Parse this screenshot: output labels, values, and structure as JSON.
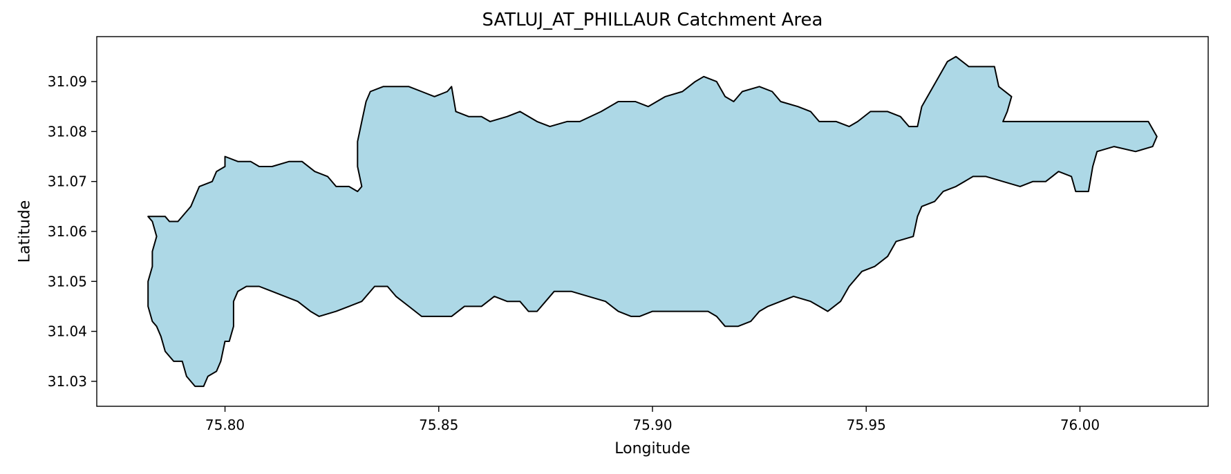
{
  "chart_data": {
    "type": "map",
    "title": "SATLUJ_AT_PHILLAUR Catchment Area",
    "xlabel": "Longitude",
    "ylabel": "Latitude",
    "xlim": [
      75.77,
      76.03
    ],
    "ylim": [
      31.025,
      31.099
    ],
    "xticks": [
      75.8,
      75.85,
      75.9,
      75.95,
      76.0
    ],
    "xtick_labels": [
      "75.80",
      "75.85",
      "75.90",
      "75.95",
      "76.00"
    ],
    "yticks": [
      31.03,
      31.04,
      31.05,
      31.06,
      31.07,
      31.08,
      31.09
    ],
    "ytick_labels": [
      "31.03",
      "31.04",
      "31.05",
      "31.06",
      "31.07",
      "31.08",
      "31.09"
    ],
    "grid": false,
    "fill_color": "#add8e6",
    "edge_color": "#000000",
    "boundary": [
      [
        75.782,
        31.063
      ],
      [
        75.786,
        31.063
      ],
      [
        75.787,
        31.062
      ],
      [
        75.789,
        31.062
      ],
      [
        75.791,
        31.064
      ],
      [
        75.792,
        31.065
      ],
      [
        75.793,
        31.067
      ],
      [
        75.794,
        31.069
      ],
      [
        75.797,
        31.07
      ],
      [
        75.798,
        31.072
      ],
      [
        75.8,
        31.073
      ],
      [
        75.8,
        31.075
      ],
      [
        75.803,
        31.074
      ],
      [
        75.806,
        31.074
      ],
      [
        75.808,
        31.073
      ],
      [
        75.811,
        31.073
      ],
      [
        75.815,
        31.074
      ],
      [
        75.818,
        31.074
      ],
      [
        75.821,
        31.072
      ],
      [
        75.824,
        31.071
      ],
      [
        75.826,
        31.069
      ],
      [
        75.829,
        31.069
      ],
      [
        75.831,
        31.068
      ],
      [
        75.832,
        31.069
      ],
      [
        75.831,
        31.073
      ],
      [
        75.831,
        31.078
      ],
      [
        75.832,
        31.082
      ],
      [
        75.833,
        31.086
      ],
      [
        75.834,
        31.088
      ],
      [
        75.837,
        31.089
      ],
      [
        75.84,
        31.089
      ],
      [
        75.843,
        31.089
      ],
      [
        75.846,
        31.088
      ],
      [
        75.849,
        31.087
      ],
      [
        75.852,
        31.088
      ],
      [
        75.853,
        31.089
      ],
      [
        75.854,
        31.084
      ],
      [
        75.857,
        31.083
      ],
      [
        75.86,
        31.083
      ],
      [
        75.862,
        31.082
      ],
      [
        75.866,
        31.083
      ],
      [
        75.869,
        31.084
      ],
      [
        75.873,
        31.082
      ],
      [
        75.876,
        31.081
      ],
      [
        75.88,
        31.082
      ],
      [
        75.883,
        31.082
      ],
      [
        75.888,
        31.084
      ],
      [
        75.892,
        31.086
      ],
      [
        75.896,
        31.086
      ],
      [
        75.899,
        31.085
      ],
      [
        75.903,
        31.087
      ],
      [
        75.907,
        31.088
      ],
      [
        75.91,
        31.09
      ],
      [
        75.912,
        31.091
      ],
      [
        75.915,
        31.09
      ],
      [
        75.917,
        31.087
      ],
      [
        75.919,
        31.086
      ],
      [
        75.921,
        31.088
      ],
      [
        75.925,
        31.089
      ],
      [
        75.928,
        31.088
      ],
      [
        75.93,
        31.086
      ],
      [
        75.934,
        31.085
      ],
      [
        75.937,
        31.084
      ],
      [
        75.939,
        31.082
      ],
      [
        75.943,
        31.082
      ],
      [
        75.946,
        31.081
      ],
      [
        75.948,
        31.082
      ],
      [
        75.951,
        31.084
      ],
      [
        75.955,
        31.084
      ],
      [
        75.958,
        31.083
      ],
      [
        75.96,
        31.081
      ],
      [
        75.962,
        31.081
      ],
      [
        75.963,
        31.085
      ],
      [
        75.965,
        31.088
      ],
      [
        75.967,
        31.091
      ],
      [
        75.969,
        31.094
      ],
      [
        75.971,
        31.095
      ],
      [
        75.974,
        31.093
      ],
      [
        75.977,
        31.093
      ],
      [
        75.98,
        31.093
      ],
      [
        75.981,
        31.089
      ],
      [
        75.984,
        31.087
      ],
      [
        75.983,
        31.084
      ],
      [
        75.982,
        31.082
      ],
      [
        75.987,
        31.082
      ],
      [
        75.993,
        31.082
      ],
      [
        75.999,
        31.082
      ],
      [
        76.005,
        31.082
      ],
      [
        76.012,
        31.082
      ],
      [
        76.016,
        31.082
      ],
      [
        76.018,
        31.079
      ],
      [
        76.017,
        31.077
      ],
      [
        76.013,
        31.076
      ],
      [
        76.008,
        31.077
      ],
      [
        76.004,
        31.076
      ],
      [
        76.003,
        31.073
      ],
      [
        76.002,
        31.068
      ],
      [
        75.999,
        31.068
      ],
      [
        75.998,
        31.071
      ],
      [
        75.995,
        31.072
      ],
      [
        75.992,
        31.07
      ],
      [
        75.989,
        31.07
      ],
      [
        75.986,
        31.069
      ],
      [
        75.982,
        31.07
      ],
      [
        75.978,
        31.071
      ],
      [
        75.975,
        31.071
      ],
      [
        75.971,
        31.069
      ],
      [
        75.968,
        31.068
      ],
      [
        75.966,
        31.066
      ],
      [
        75.963,
        31.065
      ],
      [
        75.962,
        31.063
      ],
      [
        75.961,
        31.059
      ],
      [
        75.957,
        31.058
      ],
      [
        75.955,
        31.055
      ],
      [
        75.952,
        31.053
      ],
      [
        75.949,
        31.052
      ],
      [
        75.946,
        31.049
      ],
      [
        75.944,
        31.046
      ],
      [
        75.941,
        31.044
      ],
      [
        75.939,
        31.045
      ],
      [
        75.937,
        31.046
      ],
      [
        75.933,
        31.047
      ],
      [
        75.93,
        31.046
      ],
      [
        75.927,
        31.045
      ],
      [
        75.925,
        31.044
      ],
      [
        75.923,
        31.042
      ],
      [
        75.92,
        31.041
      ],
      [
        75.917,
        31.041
      ],
      [
        75.915,
        31.043
      ],
      [
        75.913,
        31.044
      ],
      [
        75.909,
        31.044
      ],
      [
        75.906,
        31.044
      ],
      [
        75.903,
        31.044
      ],
      [
        75.9,
        31.044
      ],
      [
        75.897,
        31.043
      ],
      [
        75.895,
        31.043
      ],
      [
        75.892,
        31.044
      ],
      [
        75.889,
        31.046
      ],
      [
        75.885,
        31.047
      ],
      [
        75.881,
        31.048
      ],
      [
        75.877,
        31.048
      ],
      [
        75.875,
        31.046
      ],
      [
        75.873,
        31.044
      ],
      [
        75.871,
        31.044
      ],
      [
        75.869,
        31.046
      ],
      [
        75.866,
        31.046
      ],
      [
        75.863,
        31.047
      ],
      [
        75.86,
        31.045
      ],
      [
        75.856,
        31.045
      ],
      [
        75.853,
        31.043
      ],
      [
        75.849,
        31.043
      ],
      [
        75.846,
        31.043
      ],
      [
        75.843,
        31.045
      ],
      [
        75.84,
        31.047
      ],
      [
        75.838,
        31.049
      ],
      [
        75.835,
        31.049
      ],
      [
        75.832,
        31.046
      ],
      [
        75.829,
        31.045
      ],
      [
        75.826,
        31.044
      ],
      [
        75.822,
        31.043
      ],
      [
        75.82,
        31.044
      ],
      [
        75.817,
        31.046
      ],
      [
        75.814,
        31.047
      ],
      [
        75.811,
        31.048
      ],
      [
        75.808,
        31.049
      ],
      [
        75.805,
        31.049
      ],
      [
        75.803,
        31.048
      ],
      [
        75.802,
        31.046
      ],
      [
        75.802,
        31.041
      ],
      [
        75.801,
        31.038
      ],
      [
        75.8,
        31.038
      ],
      [
        75.799,
        31.034
      ],
      [
        75.798,
        31.032
      ],
      [
        75.796,
        31.031
      ],
      [
        75.795,
        31.029
      ],
      [
        75.793,
        31.029
      ],
      [
        75.791,
        31.031
      ],
      [
        75.79,
        31.034
      ],
      [
        75.788,
        31.034
      ],
      [
        75.786,
        31.036
      ],
      [
        75.785,
        31.039
      ],
      [
        75.784,
        31.041
      ],
      [
        75.783,
        31.042
      ],
      [
        75.782,
        31.045
      ],
      [
        75.782,
        31.05
      ],
      [
        75.783,
        31.053
      ],
      [
        75.783,
        31.056
      ],
      [
        75.784,
        31.059
      ],
      [
        75.783,
        31.062
      ],
      [
        75.782,
        31.063
      ]
    ]
  }
}
